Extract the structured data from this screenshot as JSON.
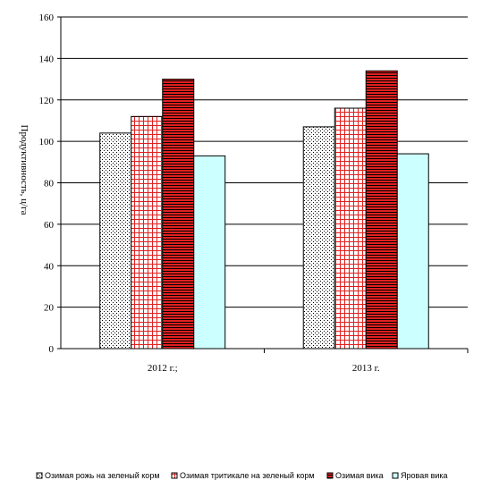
{
  "chart_data": {
    "type": "bar",
    "title": "",
    "xlabel": "",
    "ylabel": "Продуктивность, ц/га",
    "categories": [
      "2012 г.;",
      "2013 г."
    ],
    "ylim": [
      0,
      160
    ],
    "yticks": [
      0,
      20,
      40,
      60,
      80,
      100,
      120,
      140,
      160
    ],
    "grid": true,
    "legend_position": "bottom",
    "series": [
      {
        "name": "Озимая рожь на зеленый корм",
        "values": [
          104,
          107
        ],
        "fill": "#ffffff",
        "pattern": "dots"
      },
      {
        "name": "Озимая тритикале на зеленый корм",
        "values": [
          112,
          116
        ],
        "fill": "#ffffff",
        "pattern": "grid-red",
        "accent": "#e02020"
      },
      {
        "name": "Озимая вика",
        "values": [
          130,
          134
        ],
        "fill": "#e02020",
        "pattern": "hlines"
      },
      {
        "name": "Яровая вика",
        "values": [
          93,
          94
        ],
        "fill": "#ccffff",
        "pattern": "solid"
      }
    ]
  }
}
